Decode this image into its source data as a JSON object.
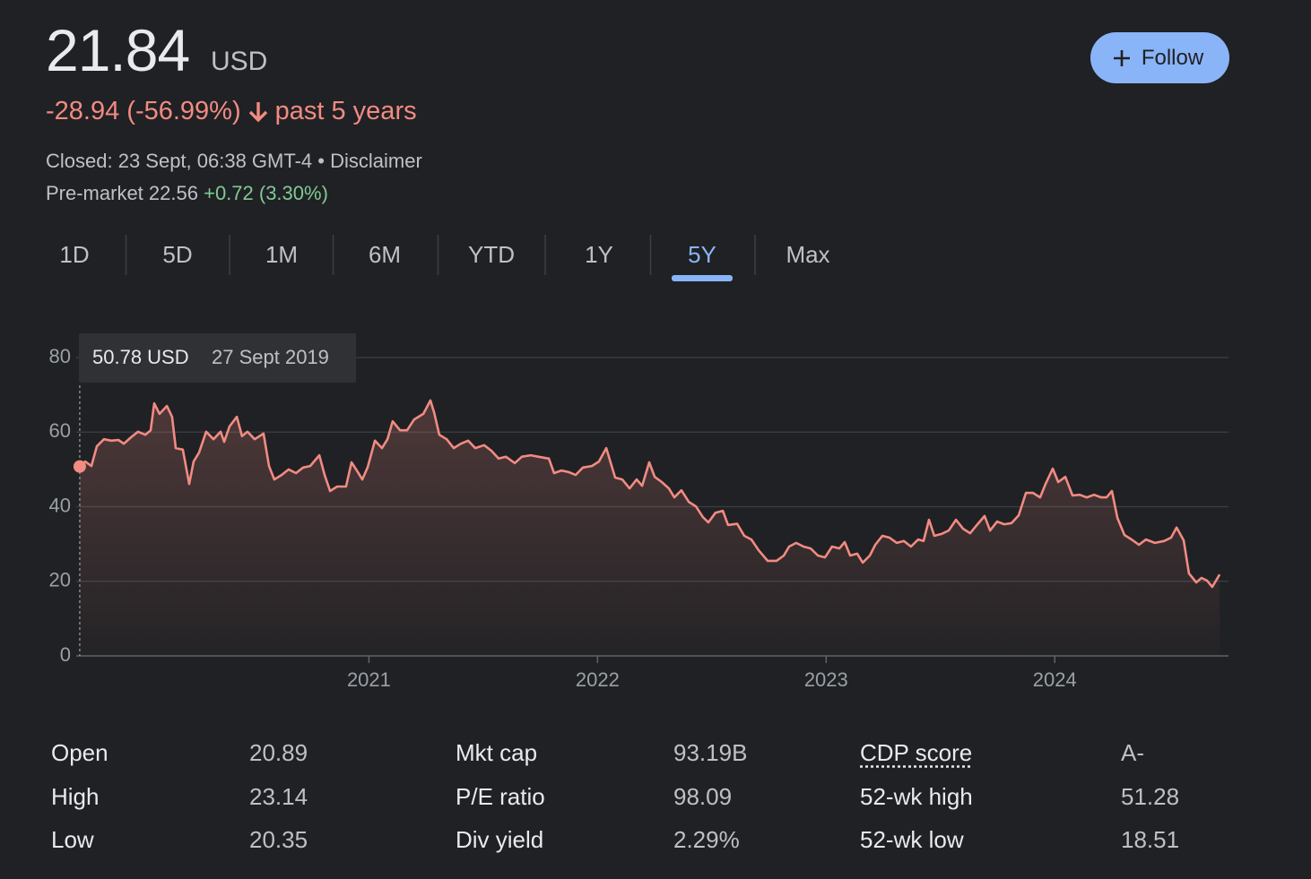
{
  "header": {
    "price": "21.84",
    "currency": "USD",
    "change": "-28.94 (-56.99%)",
    "period": "past 5 years",
    "closed": "Closed: 23 Sept, 06:38 GMT-4",
    "separator": "•",
    "disclaimer": "Disclaimer",
    "premarket": "Pre-market 22.56",
    "premarket_change": "+0.72 (3.30%)"
  },
  "follow_button": "Follow",
  "tabs": {
    "items": [
      "1D",
      "5D",
      "1M",
      "6M",
      "YTD",
      "1Y",
      "5Y",
      "Max"
    ],
    "selected": 6
  },
  "chart_data": {
    "type": "line",
    "color": "#f28b82",
    "tooltip": {
      "value": "50.78 USD",
      "date": "27 Sept 2019"
    },
    "xlim": [
      2019.7,
      2024.76
    ],
    "xticks": [
      2021,
      2022,
      2023,
      2024
    ],
    "ylim": [
      0,
      80
    ],
    "yticks": [
      0,
      20,
      40,
      60,
      80
    ],
    "grid": true,
    "x": [
      2019.735,
      2019.759,
      2019.786,
      2019.81,
      2019.841,
      2019.873,
      2019.904,
      2019.928,
      2019.959,
      2019.99,
      2020.022,
      2020.045,
      2020.061,
      2020.084,
      2020.116,
      2020.139,
      2020.155,
      2020.186,
      2020.214,
      2020.233,
      2020.257,
      2020.288,
      2020.32,
      2020.351,
      2020.367,
      2020.39,
      2020.422,
      2020.445,
      2020.469,
      2020.5,
      2020.539,
      2020.563,
      2020.586,
      2020.618,
      2020.649,
      2020.681,
      2020.712,
      2020.743,
      2020.783,
      2020.806,
      2020.83,
      2020.861,
      2020.9,
      2020.924,
      2020.947,
      2020.971,
      2020.994,
      2021.026,
      2021.057,
      2021.081,
      2021.104,
      2021.136,
      2021.167,
      2021.198,
      2021.238,
      2021.269,
      2021.285,
      2021.308,
      2021.34,
      2021.371,
      2021.402,
      2021.434,
      2021.465,
      2021.504,
      2021.536,
      2021.567,
      2021.599,
      2021.638,
      2021.669,
      2021.708,
      2021.74,
      2021.787,
      2021.81,
      2021.842,
      2021.873,
      2021.904,
      2021.936,
      2021.975,
      2022.006,
      2022.038,
      2022.077,
      2022.108,
      2022.14,
      2022.171,
      2022.195,
      2022.226,
      2022.25,
      2022.281,
      2022.312,
      2022.336,
      2022.367,
      2022.399,
      2022.43,
      2022.461,
      2022.485,
      2022.516,
      2022.548,
      2022.571,
      2022.611,
      2022.642,
      2022.673,
      2022.705,
      2022.744,
      2022.783,
      2022.815,
      2022.838,
      2022.869,
      2022.901,
      2022.932,
      2022.964,
      2022.995,
      2023.026,
      2023.058,
      2023.081,
      2023.105,
      2023.136,
      2023.16,
      2023.191,
      2023.215,
      2023.246,
      2023.277,
      2023.309,
      2023.34,
      2023.371,
      2023.403,
      2023.426,
      2023.45,
      2023.473,
      2023.505,
      2023.536,
      2023.568,
      2023.599,
      2023.63,
      2023.662,
      2023.693,
      2023.717,
      2023.748,
      2023.779,
      2023.811,
      2023.842,
      2023.874,
      2023.905,
      2023.936,
      2023.96,
      2023.991,
      2024.015,
      2024.046,
      2024.078,
      2024.109,
      2024.14,
      2024.172,
      2024.203,
      2024.227,
      2024.25,
      2024.274,
      2024.305,
      2024.336,
      2024.368,
      2024.399,
      2024.438,
      2024.478,
      2024.509,
      2024.533,
      2024.564,
      2024.587,
      2024.619,
      2024.642,
      2024.666,
      2024.689,
      2024.721
    ],
    "values": [
      50.78,
      52.1,
      50.9,
      56.2,
      58.1,
      57.7,
      57.9,
      56.9,
      58.6,
      60.1,
      59.3,
      60.5,
      67.7,
      64.9,
      67.0,
      64.1,
      55.7,
      55.3,
      46.1,
      52.1,
      54.5,
      60.1,
      58.1,
      60.1,
      57.4,
      61.5,
      64.1,
      58.9,
      60.1,
      58.1,
      59.6,
      50.9,
      47.3,
      48.5,
      50.0,
      49.0,
      50.5,
      50.9,
      53.8,
      48.5,
      44.2,
      45.4,
      45.4,
      51.9,
      49.7,
      47.3,
      50.5,
      57.7,
      55.7,
      58.1,
      62.9,
      60.5,
      60.5,
      63.4,
      64.9,
      68.5,
      65.3,
      59.3,
      58.1,
      55.7,
      56.9,
      57.7,
      55.7,
      56.5,
      55.0,
      52.9,
      53.4,
      51.7,
      53.4,
      53.8,
      53.4,
      52.9,
      49.0,
      49.7,
      49.3,
      48.5,
      50.5,
      50.9,
      52.1,
      55.7,
      47.8,
      47.3,
      44.9,
      47.3,
      45.6,
      51.9,
      48.0,
      46.6,
      44.9,
      42.5,
      44.4,
      41.3,
      40.1,
      37.2,
      35.8,
      38.4,
      38.9,
      35.1,
      35.4,
      32.2,
      31.2,
      28.3,
      25.5,
      25.5,
      26.9,
      29.3,
      30.3,
      29.3,
      28.8,
      26.9,
      26.4,
      29.3,
      28.8,
      30.5,
      26.9,
      27.4,
      25.0,
      26.9,
      29.8,
      32.2,
      31.7,
      30.3,
      30.8,
      29.3,
      31.2,
      30.8,
      36.5,
      32.2,
      32.7,
      33.6,
      36.5,
      34.1,
      32.9,
      35.3,
      37.5,
      33.6,
      36.0,
      35.3,
      35.6,
      37.7,
      43.7,
      43.7,
      42.5,
      46.1,
      50.2,
      46.6,
      48.0,
      43.0,
      43.2,
      42.5,
      43.2,
      42.5,
      42.5,
      44.2,
      37.0,
      32.4,
      31.2,
      29.8,
      31.2,
      30.3,
      30.8,
      31.7,
      34.4,
      31.0,
      22.1,
      19.7,
      20.9,
      20.2,
      18.5,
      21.84
    ]
  },
  "stats": [
    [
      {
        "label": "Open",
        "value": "20.89"
      },
      {
        "label": "Mkt cap",
        "value": "93.19B"
      },
      {
        "label": "CDP score",
        "value": "A-"
      }
    ],
    [
      {
        "label": "High",
        "value": "23.14"
      },
      {
        "label": "P/E ratio",
        "value": "98.09"
      },
      {
        "label": "52-wk high",
        "value": "51.28"
      }
    ],
    [
      {
        "label": "Low",
        "value": "20.35"
      },
      {
        "label": "Div yield",
        "value": "2.29%"
      },
      {
        "label": "52-wk low",
        "value": "18.51"
      }
    ]
  ]
}
